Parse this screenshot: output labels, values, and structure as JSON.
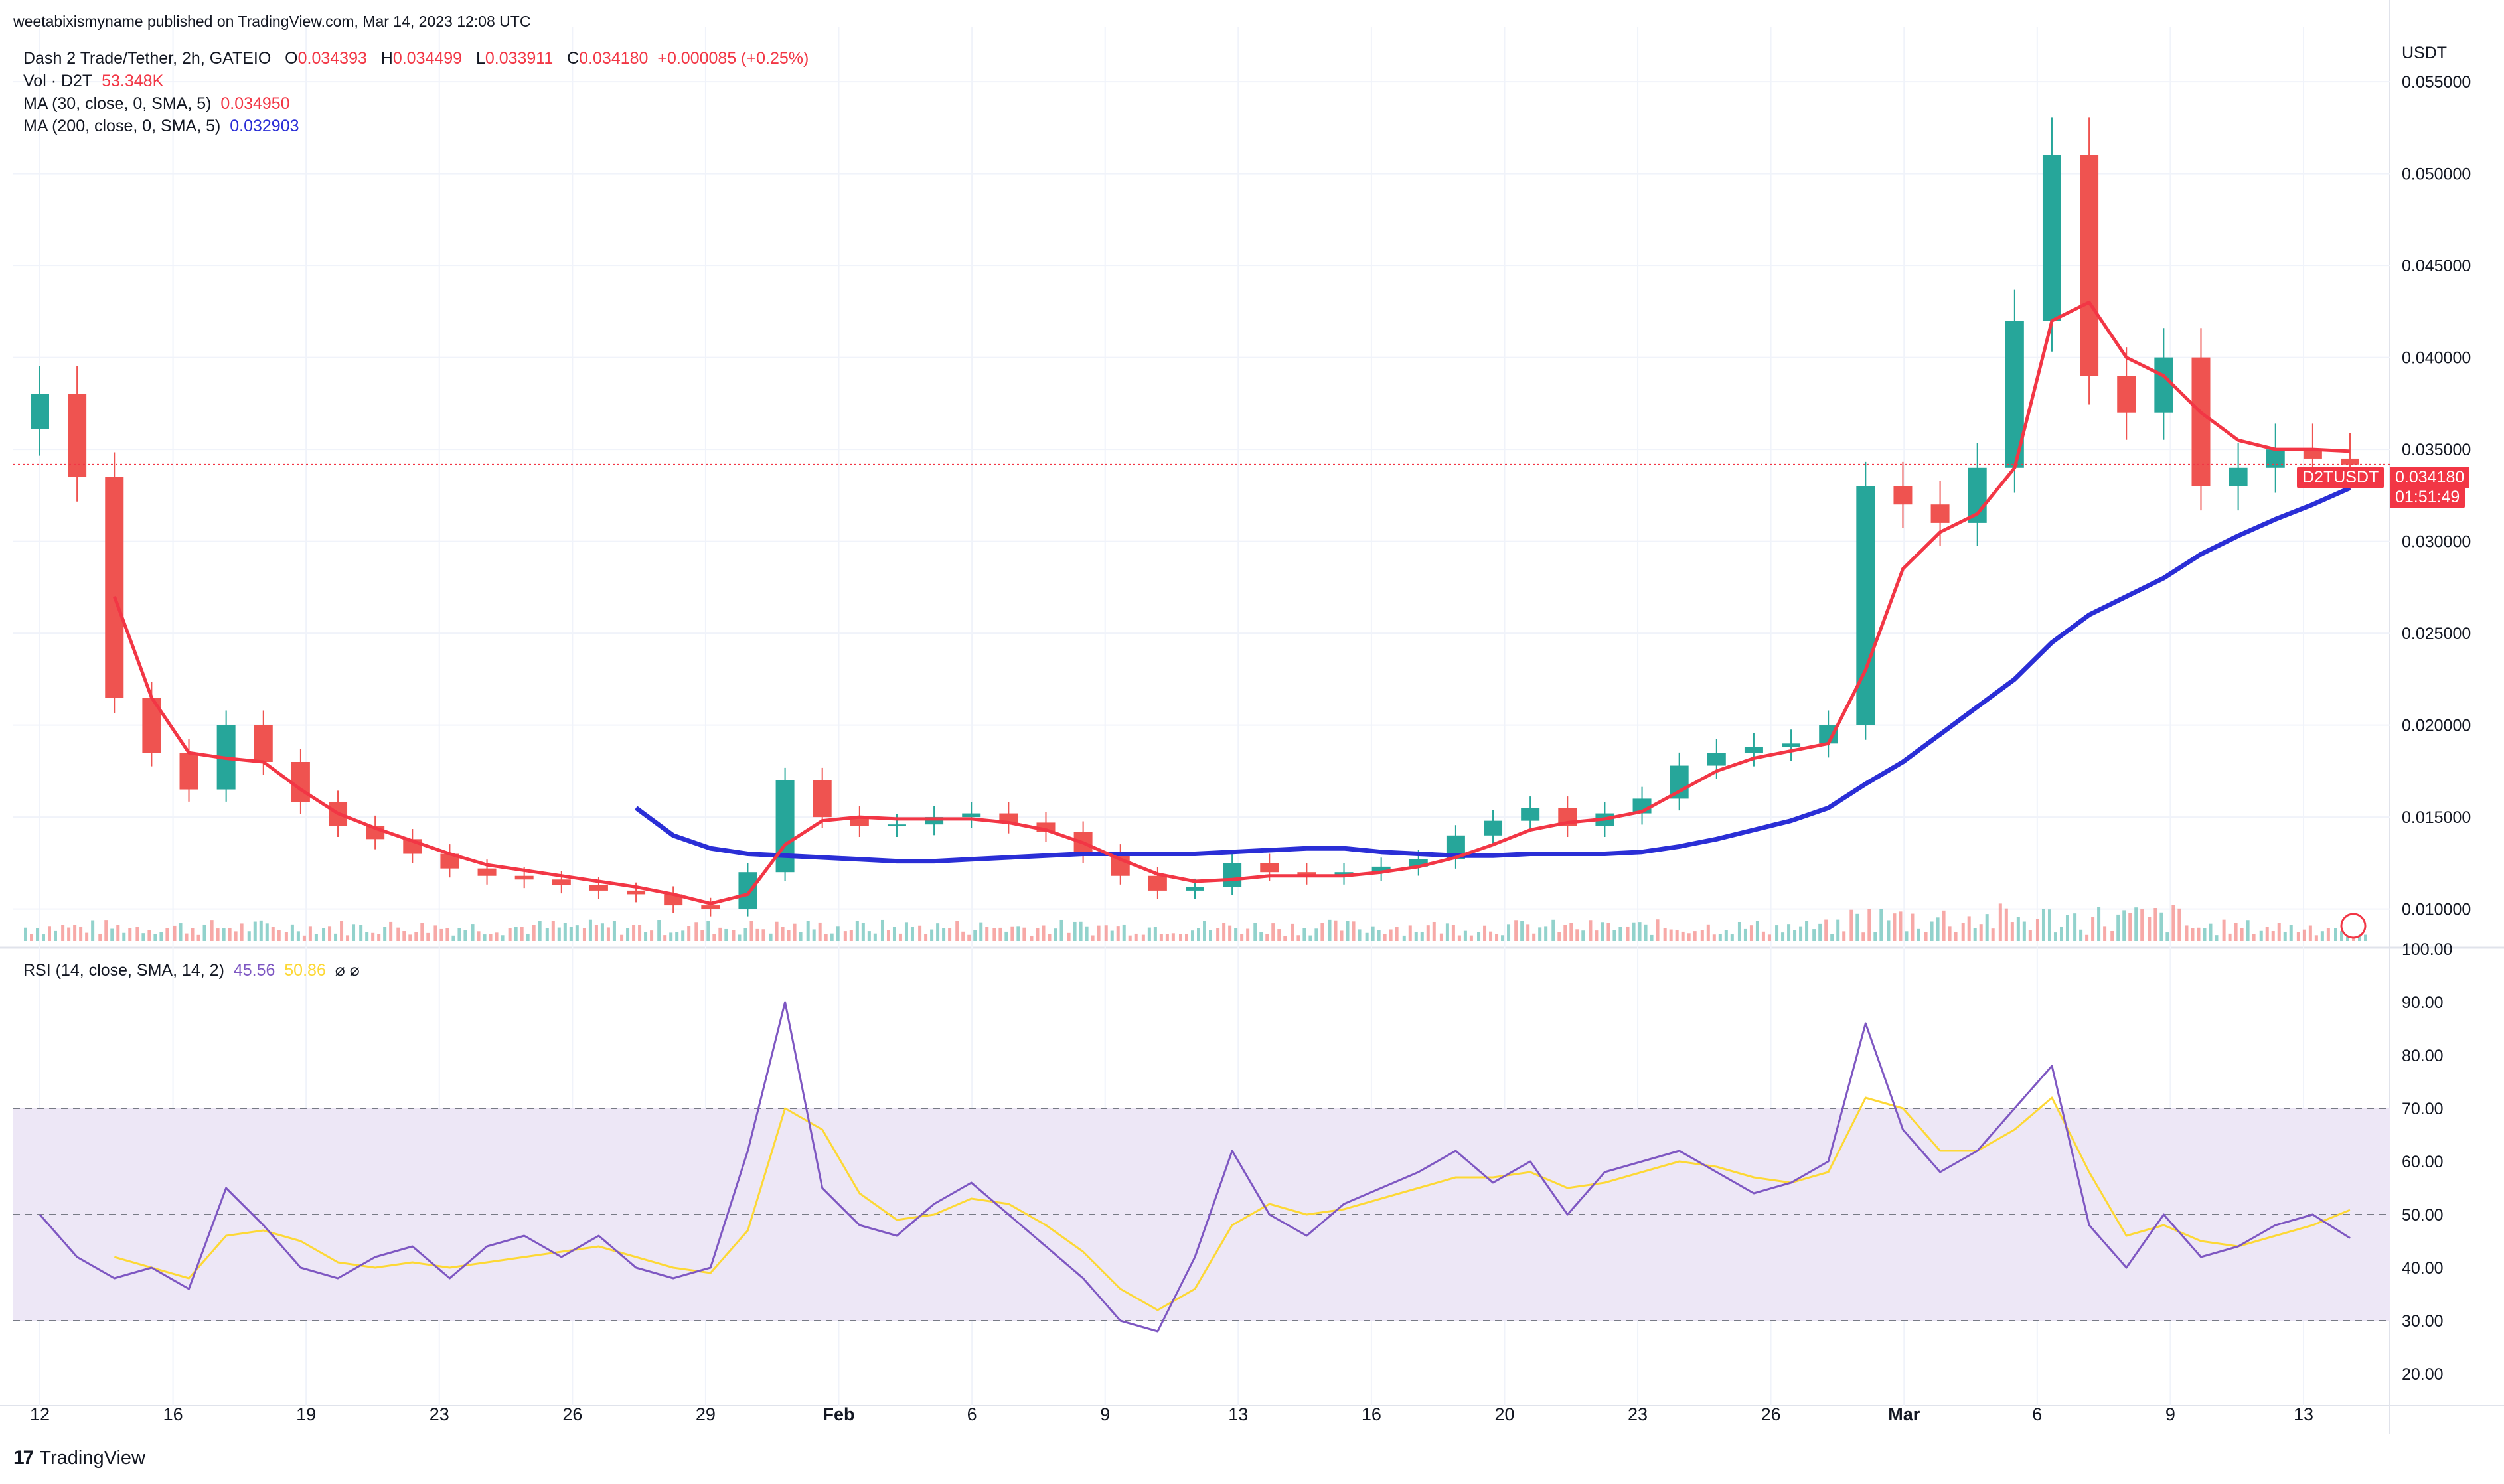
{
  "header": {
    "published": "weetabixismyname published on TradingView.com, Mar 14, 2023 12:08 UTC"
  },
  "legend": {
    "symbol": "Dash 2 Trade/Tether, 2h, GATEIO",
    "o_label": "O",
    "o": "0.034393",
    "h_label": "H",
    "h": "0.034499",
    "l_label": "L",
    "l": "0.033911",
    "c_label": "C",
    "c": "0.034180",
    "change": "+0.000085 (+0.25%)",
    "vol_label": "Vol · D2T",
    "vol": "53.348K",
    "ma30_label": "MA (30, close, 0, SMA, 5)",
    "ma30": "0.034950",
    "ma200_label": "MA (200, close, 0, SMA, 5)",
    "ma200": "0.032903",
    "rsi_label": "RSI (14, close, SMA, 14, 2)",
    "rsi": "45.56",
    "rsi_ma": "50.86",
    "icons": "⌀ ⌀"
  },
  "price_axis": {
    "unit": "USDT",
    "ticks": [
      "0.055000",
      "0.050000",
      "0.045000",
      "0.040000",
      "0.035000",
      "0.030000",
      "0.025000",
      "0.020000",
      "0.015000",
      "0.010000"
    ]
  },
  "rsi_axis": {
    "ticks": [
      "100.00",
      "90.00",
      "80.00",
      "70.00",
      "60.00",
      "50.00",
      "40.00",
      "30.00",
      "20.00"
    ]
  },
  "current_price": {
    "symbol": "D2TUSDT",
    "price": "0.034180",
    "countdown": "01:51:49"
  },
  "time_axis": [
    "12",
    "16",
    "19",
    "23",
    "26",
    "29",
    "Feb",
    "6",
    "9",
    "13",
    "16",
    "20",
    "23",
    "26",
    "Mar",
    "6",
    "9",
    "13"
  ],
  "footer": {
    "brand": "TradingView"
  },
  "colors": {
    "up": "#26a69a",
    "down": "#ef5350",
    "ma30": "#f23645",
    "ma200": "#2a2ed6",
    "rsi": "#7e57c2",
    "rsi_ma": "#fdd835",
    "rsi_band": "#ede7f6"
  },
  "chart_data": [
    {
      "type": "candlestick",
      "title": "Dash 2 Trade/Tether, 2h, GATEIO",
      "ylabel": "USDT",
      "ylim": [
        0.008,
        0.058
      ],
      "x_range": [
        "Jan 11",
        "Mar 14"
      ],
      "note_points": "approximate daily closes read off chart",
      "dates": [
        "Jan 11",
        "Jan 12",
        "Jan 13",
        "Jan 14",
        "Jan 15",
        "Jan 16",
        "Jan 17",
        "Jan 18",
        "Jan 19",
        "Jan 20",
        "Jan 21",
        "Jan 22",
        "Jan 23",
        "Jan 24",
        "Jan 25",
        "Jan 26",
        "Jan 27",
        "Jan 28",
        "Jan 29",
        "Jan 30",
        "Jan 31",
        "Feb 1",
        "Feb 2",
        "Feb 3",
        "Feb 4",
        "Feb 5",
        "Feb 6",
        "Feb 7",
        "Feb 8",
        "Feb 9",
        "Feb 10",
        "Feb 11",
        "Feb 12",
        "Feb 13",
        "Feb 14",
        "Feb 15",
        "Feb 16",
        "Feb 17",
        "Feb 18",
        "Feb 19",
        "Feb 20",
        "Feb 21",
        "Feb 22",
        "Feb 23",
        "Feb 24",
        "Feb 25",
        "Feb 26",
        "Feb 27",
        "Feb 28",
        "Mar 1",
        "Mar 2",
        "Mar 3",
        "Mar 4",
        "Mar 5",
        "Mar 6",
        "Mar 7",
        "Mar 8",
        "Mar 9",
        "Mar 10",
        "Mar 11",
        "Mar 12",
        "Mar 13",
        "Mar 14"
      ],
      "close": [
        0.038,
        0.0335,
        0.0215,
        0.0185,
        0.0165,
        0.02,
        0.018,
        0.0158,
        0.0145,
        0.0138,
        0.013,
        0.0122,
        0.0118,
        0.0116,
        0.0113,
        0.011,
        0.0108,
        0.0102,
        0.01,
        0.012,
        0.017,
        0.015,
        0.0145,
        0.0146,
        0.015,
        0.0152,
        0.0147,
        0.0142,
        0.013,
        0.0118,
        0.011,
        0.0112,
        0.0125,
        0.012,
        0.0118,
        0.012,
        0.0123,
        0.0127,
        0.014,
        0.0148,
        0.0155,
        0.0145,
        0.0152,
        0.016,
        0.0178,
        0.0185,
        0.0188,
        0.019,
        0.02,
        0.033,
        0.032,
        0.031,
        0.034,
        0.042,
        0.051,
        0.039,
        0.037,
        0.04,
        0.033,
        0.034,
        0.035,
        0.0345,
        0.03418
      ],
      "ma30": [
        null,
        null,
        0.027,
        0.0215,
        0.0185,
        0.0182,
        0.018,
        0.0165,
        0.0152,
        0.0144,
        0.0137,
        0.013,
        0.0124,
        0.0121,
        0.0118,
        0.0115,
        0.0112,
        0.0108,
        0.0103,
        0.0108,
        0.0135,
        0.0148,
        0.015,
        0.0149,
        0.0149,
        0.0149,
        0.0147,
        0.0143,
        0.0136,
        0.0127,
        0.0119,
        0.0115,
        0.0116,
        0.0118,
        0.0118,
        0.0118,
        0.012,
        0.0123,
        0.0128,
        0.0135,
        0.0143,
        0.0147,
        0.0149,
        0.0153,
        0.0164,
        0.0175,
        0.0182,
        0.0186,
        0.019,
        0.023,
        0.0285,
        0.0305,
        0.0315,
        0.034,
        0.042,
        0.043,
        0.04,
        0.039,
        0.037,
        0.0355,
        0.035,
        0.035,
        0.0349
      ],
      "ma200": [
        null,
        null,
        null,
        null,
        null,
        null,
        null,
        null,
        null,
        null,
        null,
        null,
        null,
        null,
        null,
        null,
        0.0155,
        0.014,
        0.0133,
        0.013,
        0.0129,
        0.0128,
        0.0127,
        0.0126,
        0.0126,
        0.0127,
        0.0128,
        0.0129,
        0.013,
        0.013,
        0.013,
        0.013,
        0.0131,
        0.0132,
        0.0133,
        0.0133,
        0.0131,
        0.013,
        0.0129,
        0.0129,
        0.013,
        0.013,
        0.013,
        0.0131,
        0.0134,
        0.0138,
        0.0143,
        0.0148,
        0.0155,
        0.0168,
        0.018,
        0.0195,
        0.021,
        0.0225,
        0.0245,
        0.026,
        0.027,
        0.028,
        0.0293,
        0.0303,
        0.0312,
        0.032,
        0.0329
      ]
    },
    {
      "type": "line",
      "title": "RSI (14, close, SMA, 14, 2)",
      "ylim": [
        15,
        100
      ],
      "bands": [
        30,
        50,
        70
      ],
      "rsi": [
        50,
        42,
        38,
        40,
        36,
        55,
        48,
        40,
        38,
        42,
        44,
        38,
        44,
        46,
        42,
        46,
        40,
        38,
        40,
        62,
        90,
        55,
        48,
        46,
        52,
        56,
        50,
        44,
        38,
        30,
        28,
        42,
        62,
        50,
        46,
        52,
        55,
        58,
        62,
        56,
        60,
        50,
        58,
        60,
        62,
        58,
        54,
        56,
        60,
        86,
        66,
        58,
        62,
        70,
        78,
        48,
        40,
        50,
        42,
        44,
        48,
        50,
        45.56
      ],
      "rsi_ma": [
        null,
        null,
        42,
        40,
        38,
        46,
        47,
        45,
        41,
        40,
        41,
        40,
        41,
        42,
        43,
        44,
        42,
        40,
        39,
        47,
        70,
        66,
        54,
        49,
        50,
        53,
        52,
        48,
        43,
        36,
        32,
        36,
        48,
        52,
        50,
        51,
        53,
        55,
        57,
        57,
        58,
        55,
        56,
        58,
        60,
        59,
        57,
        56,
        58,
        72,
        70,
        62,
        62,
        66,
        72,
        58,
        46,
        48,
        45,
        44,
        46,
        48,
        50.86
      ]
    }
  ]
}
